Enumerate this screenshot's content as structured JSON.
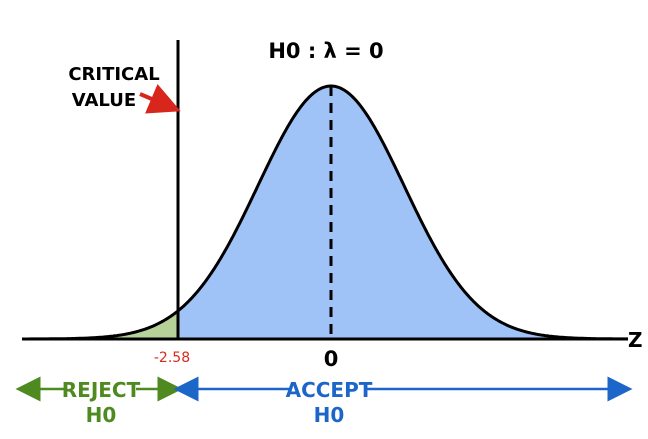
{
  "chart_data": {
    "type": "area",
    "distribution": "standard normal",
    "x_axis_label": "Z",
    "mean_tick_label": "0",
    "critical_value_tick_label": "-2.58",
    "critical_value": -2.58,
    "hypothesis": "H0 : λ = 0",
    "annotation": {
      "line1": "CRITICAL",
      "line2": "VALUE"
    },
    "regions": [
      {
        "name": "reject",
        "label_line1": "REJECT",
        "label_line2": "H0",
        "color": "#b6d299",
        "label_color": "#4e8a1f"
      },
      {
        "name": "accept",
        "label_line1": "ACCEPT",
        "label_line2": "H0",
        "color": "#9fc2f7",
        "label_color": "#1d66c9"
      }
    ],
    "annotation_arrow_color": "#d9261c",
    "tick_label_color": "#d92a1f",
    "curve_color": "#000000"
  }
}
